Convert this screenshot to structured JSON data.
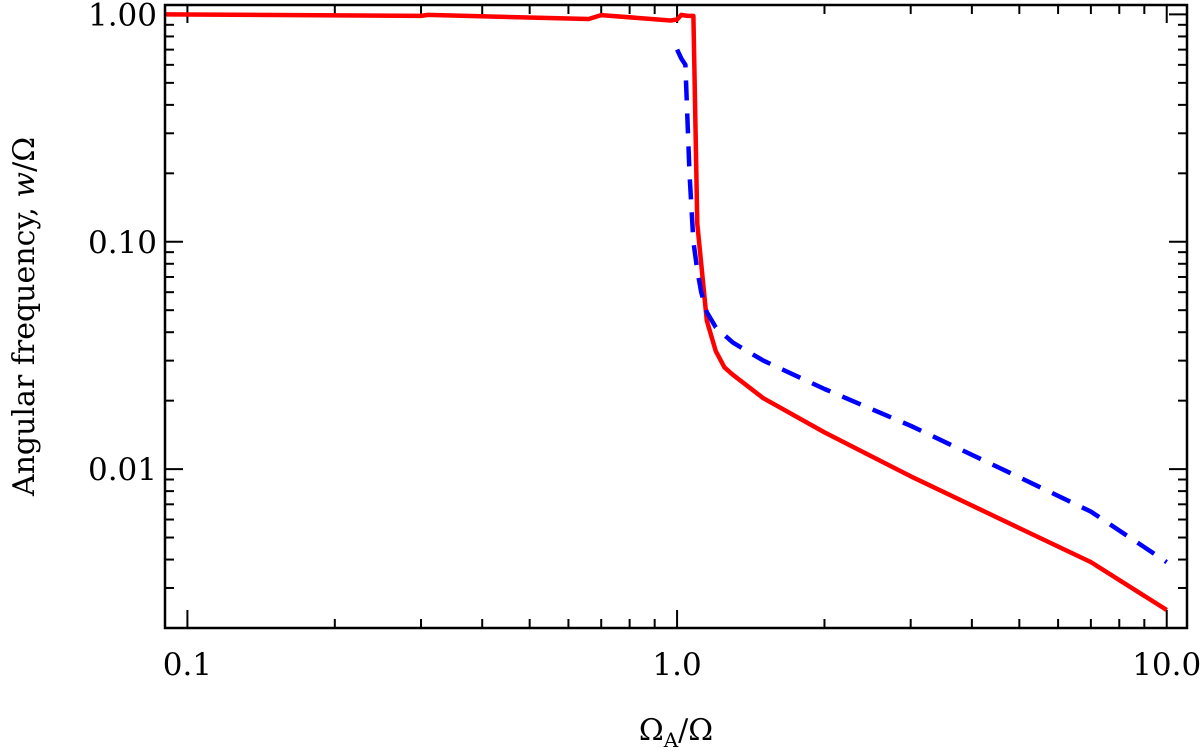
{
  "chart_data": {
    "type": "line",
    "xscale": "log",
    "yscale": "log",
    "xlim": [
      0.09,
      11
    ],
    "ylim": [
      0.002,
      1.1
    ],
    "grid": false,
    "legend": "none",
    "xlabel": {
      "main": "Ω",
      "sub": "A",
      "tail": "/Ω"
    },
    "ylabel": {
      "text": "Angular frequency, ",
      "var": "w",
      "tail": "/Ω"
    },
    "x_ticks": [
      {
        "value": 0.1,
        "label": "0.1"
      },
      {
        "value": 1.0,
        "label": "1.0"
      },
      {
        "value": 10.0,
        "label": "10.0"
      }
    ],
    "y_ticks": [
      {
        "value": 0.01,
        "label": "0.01"
      },
      {
        "value": 0.1,
        "label": "0.10"
      },
      {
        "value": 1.0,
        "label": "1.00"
      }
    ],
    "series": [
      {
        "color": "#ff0000",
        "dash": "solid",
        "points": [
          [
            0.09,
            1.0
          ],
          [
            0.3,
            0.985
          ],
          [
            0.31,
            0.995
          ],
          [
            0.66,
            0.955
          ],
          [
            0.7,
            0.993
          ],
          [
            0.97,
            0.94
          ],
          [
            1.0,
            0.95
          ],
          [
            1.02,
            0.995
          ],
          [
            1.05,
            0.985
          ],
          [
            1.08,
            0.985
          ],
          [
            1.1,
            0.12
          ],
          [
            1.15,
            0.045
          ],
          [
            1.2,
            0.033
          ],
          [
            1.25,
            0.028
          ],
          [
            1.3,
            0.026
          ],
          [
            1.5,
            0.0205
          ],
          [
            2.0,
            0.0145
          ],
          [
            3.0,
            0.0093
          ],
          [
            5.0,
            0.0055
          ],
          [
            7.0,
            0.0039
          ],
          [
            10.0,
            0.0024
          ]
        ]
      },
      {
        "color": "#0000ff",
        "dash": "dashed",
        "points": [
          [
            1.0,
            0.7
          ],
          [
            1.02,
            0.64
          ],
          [
            1.04,
            0.6
          ],
          [
            1.05,
            0.35
          ],
          [
            1.06,
            0.2
          ],
          [
            1.08,
            0.1
          ],
          [
            1.1,
            0.075
          ],
          [
            1.12,
            0.06
          ],
          [
            1.15,
            0.049
          ],
          [
            1.2,
            0.042
          ],
          [
            1.3,
            0.036
          ],
          [
            1.5,
            0.03
          ],
          [
            2.0,
            0.0225
          ],
          [
            3.0,
            0.0155
          ],
          [
            5.0,
            0.0092
          ],
          [
            7.0,
            0.0065
          ],
          [
            10.0,
            0.0039
          ]
        ]
      }
    ]
  }
}
